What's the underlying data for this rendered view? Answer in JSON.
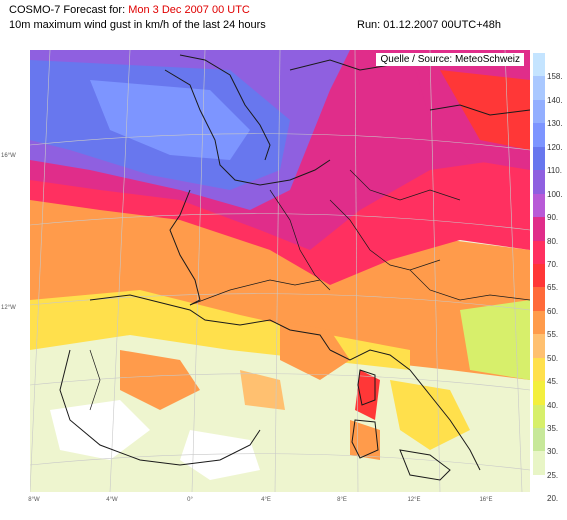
{
  "header": {
    "title_prefix": "COSMO-7 Forecast for:",
    "title_date": "Mon 3 Dec 2007 00 UTC",
    "subtitle": "10m maximum wind gust in km/h of the last 24 hours",
    "run": "Run: 01.12.2007 00UTC+48h"
  },
  "source": "Quelle / Source: MeteoSchweiz",
  "lat_labels": [
    "16°W",
    "12°W"
  ],
  "lon_labels": [
    "8°W",
    "4°W",
    "0°",
    "4°E",
    "8°E",
    "12°E",
    "16°E"
  ],
  "legend": [
    {
      "label": "158.",
      "color": "#c4e4ff"
    },
    {
      "label": "140.",
      "color": "#a9c8ff"
    },
    {
      "label": "130.",
      "color": "#93afff"
    },
    {
      "label": "120.",
      "color": "#7d95ff"
    },
    {
      "label": "110.",
      "color": "#6877ee"
    },
    {
      "label": "100.",
      "color": "#8f60e0"
    },
    {
      "label": "90.",
      "color": "#b85ad7"
    },
    {
      "label": "80.",
      "color": "#e02d8a"
    },
    {
      "label": "70.",
      "color": "#ff3060"
    },
    {
      "label": "65.",
      "color": "#ff3737"
    },
    {
      "label": "60.",
      "color": "#ff6a3a"
    },
    {
      "label": "55.",
      "color": "#ff9b4b"
    },
    {
      "label": "50.",
      "color": "#ffc070"
    },
    {
      "label": "45.",
      "color": "#ffe04c"
    },
    {
      "label": "40.",
      "color": "#f3ef3e"
    },
    {
      "label": "35.",
      "color": "#d7ef6b"
    },
    {
      "label": "30.",
      "color": "#c7e89a"
    },
    {
      "label": "25.",
      "color": "#e8f5c6"
    },
    {
      "label": "20.",
      "color": "#ffffff"
    }
  ]
}
